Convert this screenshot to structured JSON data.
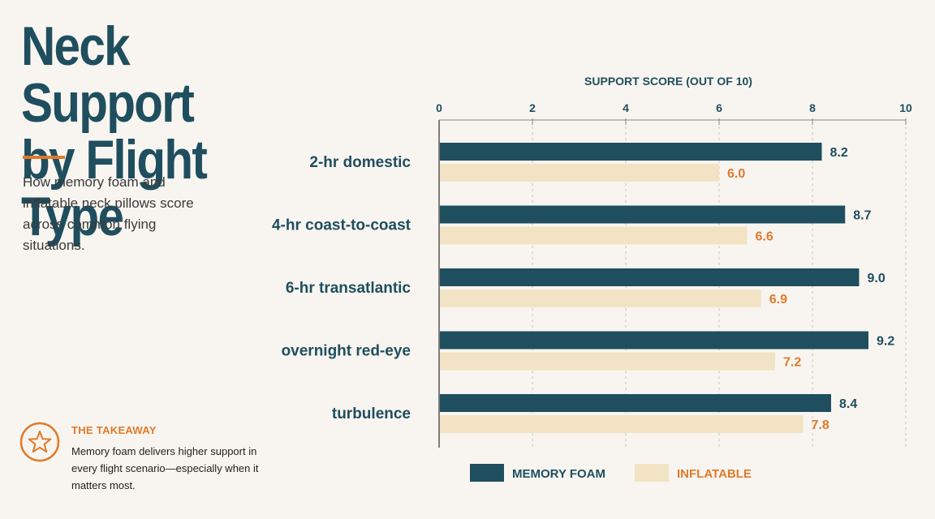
{
  "header": {
    "title_line1": "Neck Support",
    "title_line2": "by Flight Type",
    "subtitle": "How memory foam and inflatable neck pillows score across common flying situations."
  },
  "takeaway": {
    "icon": "star-icon",
    "heading": "THE TAKEAWAY",
    "text": "Memory foam delivers higher support in every flight scenario—especially when it matters most."
  },
  "colors": {
    "memory_foam": "#1f4e5f",
    "inflatable": "#f2e3c4",
    "accent": "#e07a2a",
    "label": "#1f4e5f"
  },
  "chart_data": {
    "type": "bar",
    "orientation": "horizontal",
    "title": "",
    "xlabel": "SUPPORT SCORE (OUT OF 10)",
    "ylabel": "",
    "xlim": [
      0,
      10
    ],
    "ticks": [
      0,
      2,
      4,
      6,
      8,
      10
    ],
    "grid": true,
    "legend_position": "bottom",
    "categories": [
      "2-hr domestic",
      "4-hr coast-to-coast",
      "6-hr transatlantic",
      "overnight red-eye",
      "turbulence"
    ],
    "series": [
      {
        "name": "MEMORY FOAM",
        "values": [
          8.2,
          8.7,
          9.0,
          9.2,
          8.4
        ],
        "labels": [
          "8.2",
          "8.7",
          "9.0",
          "9.2",
          "8.4"
        ]
      },
      {
        "name": "INFLATABLE",
        "values": [
          6.0,
          6.6,
          6.9,
          7.2,
          7.8
        ],
        "labels": [
          "6.0",
          "6.6",
          "6.9",
          "7.2",
          "7.8"
        ]
      }
    ]
  }
}
